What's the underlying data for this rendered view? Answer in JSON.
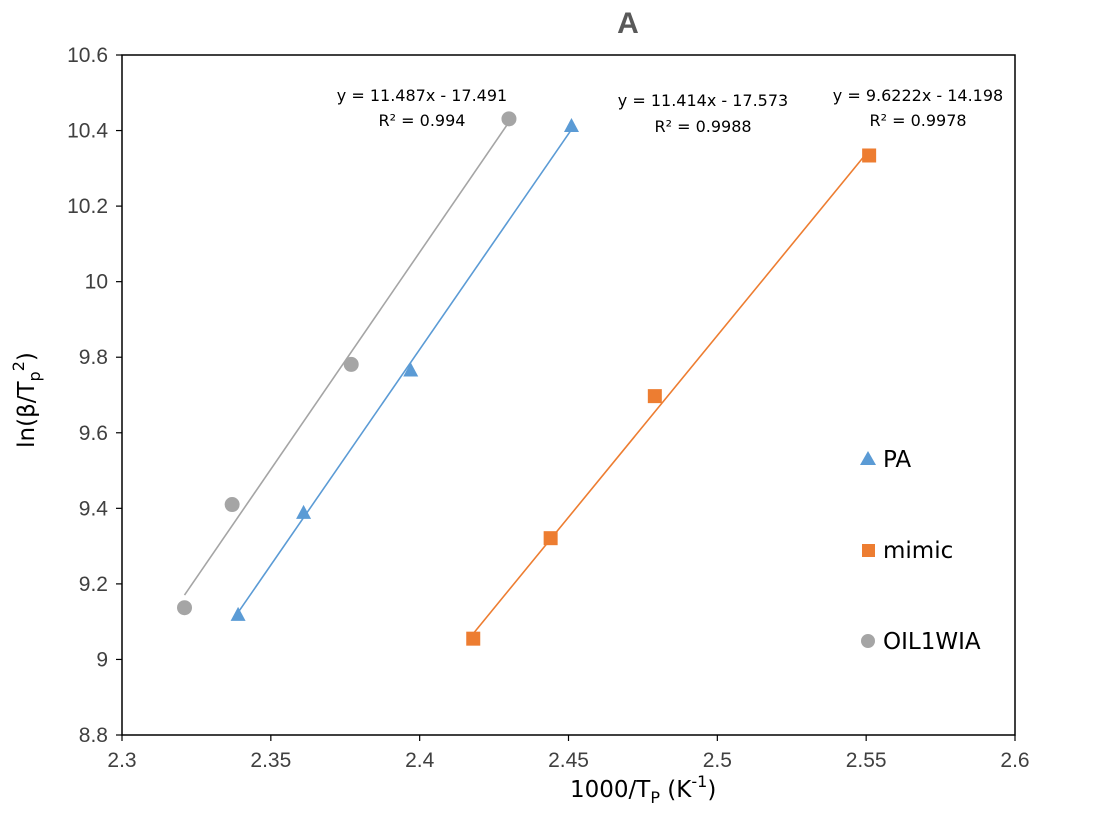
{
  "chart_data": {
    "type": "scatter",
    "title": "A",
    "xlabel": {
      "main": "1000/T",
      "sub": "P",
      "unit_open": " (K",
      "sup": "-1",
      "unit_close": ")"
    },
    "ylabel": {
      "main": "ln(β/T",
      "sub": "p",
      "sup": "2",
      "close": ")"
    },
    "xlim": [
      2.3,
      2.6
    ],
    "ylim": [
      8.8,
      10.6
    ],
    "x_ticks": [
      2.3,
      2.35,
      2.4,
      2.45,
      2.5,
      2.55,
      2.6
    ],
    "x_tick_labels": [
      "2.3",
      "2.35",
      "2.4",
      "2.45",
      "2.5",
      "2.55",
      "2.6"
    ],
    "y_ticks": [
      8.8,
      9.0,
      9.2,
      9.4,
      9.6,
      9.8,
      10.0,
      10.2,
      10.4,
      10.6
    ],
    "y_tick_labels": [
      "8.8",
      "9",
      "9.2",
      "9.4",
      "9.6",
      "9.8",
      "10",
      "10.2",
      "10.4",
      "10.6"
    ],
    "grid": false,
    "legend_position": "right",
    "series": [
      {
        "name": "PA",
        "marker": "triangle",
        "color": "#5B9BD5",
        "x": [
          2.339,
          2.361,
          2.397,
          2.451
        ],
        "y": [
          9.118,
          9.388,
          9.765,
          10.412
        ],
        "trendline": {
          "x": [
            2.339,
            2.451
          ],
          "equation": "y = 11.414x - 17.573",
          "r2": "R² = 0.9988"
        }
      },
      {
        "name": "mimic",
        "marker": "square",
        "color": "#ED7D31",
        "x": [
          2.418,
          2.444,
          2.479,
          2.551
        ],
        "y": [
          9.055,
          9.321,
          9.697,
          10.334
        ],
        "trendline": {
          "x": [
            2.418,
            2.551
          ],
          "equation": "y = 9.6222x - 14.198",
          "r2": "R² = 0.9978"
        }
      },
      {
        "name": "OIL1WIA",
        "marker": "circle",
        "color": "#A5A5A5",
        "x": [
          2.321,
          2.337,
          2.377,
          2.43
        ],
        "y": [
          9.137,
          9.41,
          9.781,
          10.431
        ],
        "trendline": {
          "x": [
            2.321,
            2.43
          ],
          "equation": "y = 11.487x - 17.491",
          "r2": "R² = 0.994"
        }
      }
    ]
  }
}
